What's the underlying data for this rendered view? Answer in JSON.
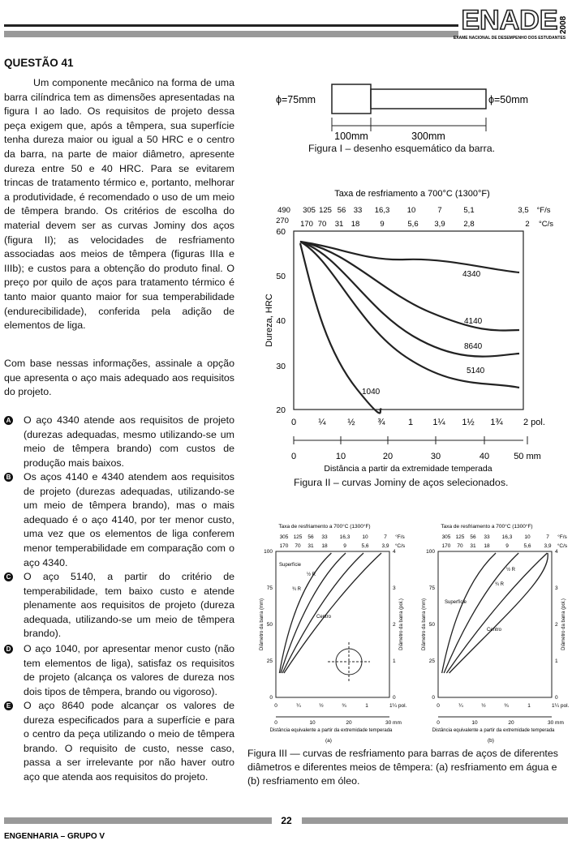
{
  "header": {
    "brand": "ENADE",
    "year": "2008",
    "subtitle": "EXAME NACIONAL DE DESEMPENHO DOS ESTUDANTES"
  },
  "question": {
    "title": "QUESTÃO 41",
    "paragraphs": [
      "Um componente mecânico na forma de uma barra cilíndrica tem as dimensões apresentadas na figura I ao lado. Os requisitos de projeto dessa peça exigem que, após a têmpera, sua superfície tenha dureza maior ou igual a 50 HRC e o centro da barra, na parte de maior diâmetro, apresente dureza entre 50 e 40 HRC. Para se evitarem trincas de tratamento térmico e, portanto, melhorar a produtividade, é recomendado o uso de um meio de têmpera brando. Os critérios de escolha do material devem ser as curvas Jominy dos aços (figura II); as velocidades de resfriamento associadas aos meios de têmpera (figuras IIIa e IIIb); e custos para a obtenção do produto final. O preço por quilo de aços para tratamento térmico é tanto maior quanto maior for sua temperabilidade (endurecibilidade), conferida pela adição de elementos de liga.",
      "Com base nessas informações, assinale a opção que apresenta o aço mais adequado aos requisitos do projeto."
    ],
    "options": [
      {
        "letter": "A",
        "text": "O aço 4340 atende aos requisitos de projeto (durezas adequadas, mesmo utilizando-se um meio de têmpera brando) com custos de produção mais baixos."
      },
      {
        "letter": "B",
        "text": "Os aços 4140 e 4340 atendem aos requisitos de projeto (durezas adequadas, utilizando-se um meio de têmpera brando), mas o mais adequado é o aço 4140, por ter menor custo, uma vez que os elementos de liga conferem menor temperabilidade em comparação com o aço 4340."
      },
      {
        "letter": "C",
        "text": "O aço 5140, a partir do critério de temperabilidade, tem baixo custo e atende plenamente aos requisitos de projeto (dureza adequada, utilizando-se um meio de têmpera brando)."
      },
      {
        "letter": "D",
        "text": "O aço 1040, por apresentar menor custo (não tem elementos de liga), satisfaz os requisitos de projeto (alcança os valores de dureza nos dois tipos de têmpera, brando ou vigoroso)."
      },
      {
        "letter": "E",
        "text": "O aço 8640 pode alcançar os valores de dureza especificados para a superfície e para o centro da peça utilizando o meio de têmpera brando. O requisito de custo, nesse caso, passa a ser irrelevante por não haver outro aço que atenda aos requisitos do projeto."
      }
    ]
  },
  "figure1": {
    "labels": [
      "ϕ=75mm",
      "ϕ=50mm",
      "100mm",
      "300mm"
    ],
    "caption": "Figura I – desenho esquemático da barra."
  },
  "figure2": {
    "top_title": "Taxa de resfriamento a 700°C (1300°F)",
    "rate_f": [
      "490",
      "305",
      "125",
      "56",
      "33",
      "16,3",
      "10",
      "7",
      "5,1",
      "3,5",
      "°F/s"
    ],
    "rate_c": [
      "270",
      "170",
      "70",
      "31",
      "18",
      "9",
      "5,6",
      "3,9",
      "2,8",
      "2",
      "°C/s"
    ],
    "y_label": "Dureza, HRC",
    "y_ticks": [
      "60",
      "50",
      "40",
      "30",
      "20"
    ],
    "curves": [
      "4340",
      "4140",
      "8640",
      "5140",
      "1040"
    ],
    "inch_ticks": [
      "0",
      "¼",
      "½",
      "¾",
      "1",
      "1¼",
      "1½",
      "1¾",
      "2 pol."
    ],
    "mm_ticks": [
      "0",
      "10",
      "20",
      "30",
      "40",
      "50 mm"
    ],
    "x_label": "Distância a partir da extremidade temperada",
    "caption": "Figura II – curvas Jominy de aços selecionados."
  },
  "figure3": {
    "top_title": "Taxa de resfriamento a 700°C (1300°F)",
    "rate_f": [
      "305",
      "125",
      "56",
      "33",
      "16,3",
      "10",
      "7",
      "°F/s"
    ],
    "rate_c": [
      "170",
      "70",
      "31",
      "18",
      "9",
      "5,6",
      "3,9",
      "°C/s"
    ],
    "y_label_left": "Diâmetro da barra (mm)",
    "y_label_right": "Diâmetro da barra (pol.)",
    "y_ticks_left": [
      "0",
      "25",
      "50",
      "75",
      "100"
    ],
    "y_ticks_right": [
      "0",
      "1",
      "2",
      "3",
      "4"
    ],
    "inch_ticks": [
      "0",
      "¼",
      "½",
      "¾",
      "1",
      "1¼ pol."
    ],
    "mm_ticks": [
      "0",
      "10",
      "20",
      "30 mm"
    ],
    "x_label": "Distância equivalente a partir da extremidade temperada",
    "curve_labels": [
      "Superfície",
      "¾ R",
      "½ R",
      "Centro"
    ],
    "panels": [
      "(a)",
      "(b)"
    ],
    "caption": "Figura III — curvas de resfriamento para barras de aços de diferentes diâmetros e diferentes meios de têmpera: (a) resfriamento em água e (b) resfriamento em óleo."
  },
  "footer": {
    "page": "22",
    "course": "ENGENHARIA – GRUPO V"
  }
}
